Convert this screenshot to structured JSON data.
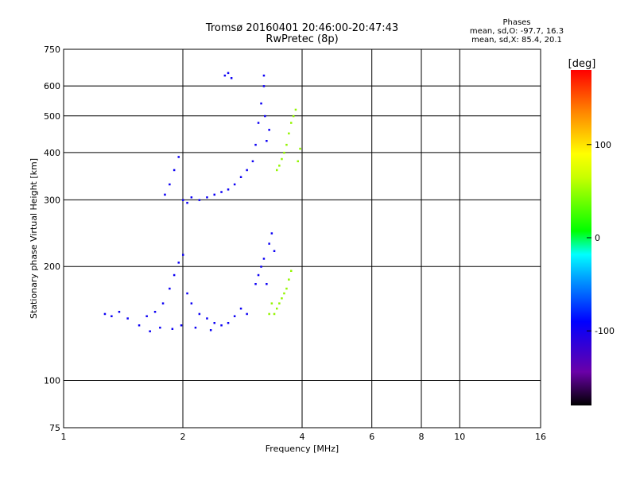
{
  "chart_data": {
    "type": "scatter",
    "title": "Tromsø 20160401 20:46:00-20:47:43",
    "subtitle": "RwPretec (8p)",
    "xlabel": "Frequency [MHz]",
    "ylabel": "Stationary phase Virtual Height [km]",
    "x_scale": "log",
    "y_scale": "log",
    "xlim": [
      1,
      16
    ],
    "ylim": [
      75,
      750
    ],
    "x_ticks": [
      "1",
      "2",
      "4",
      "6",
      "8",
      "10",
      "16"
    ],
    "x_tick_values": [
      1,
      2,
      4,
      6,
      8,
      10,
      16
    ],
    "y_ticks": [
      "75",
      "100",
      "200",
      "300",
      "400",
      "500",
      "600",
      "750"
    ],
    "y_tick_values": [
      75,
      100,
      200,
      300,
      400,
      500,
      600,
      750
    ],
    "grid": true,
    "legend": {
      "title": "Phases",
      "lines": [
        "mean, sd,O: -97.7, 16.3",
        "mean, sd,X: 85.4, 20.1"
      ]
    },
    "colorbar": {
      "unit": "[deg]",
      "range": [
        -180,
        180
      ],
      "ticks": [
        "100",
        "0",
        "-100"
      ],
      "tick_values": [
        100,
        0,
        -100
      ],
      "colormap": "rainbow"
    },
    "series": [
      {
        "mode": "O",
        "phase_mean": -97.7,
        "phase_sd": 16.3,
        "points": [
          [
            1.27,
            150
          ],
          [
            1.32,
            148
          ],
          [
            1.38,
            152
          ],
          [
            1.45,
            146
          ],
          [
            1.55,
            140
          ],
          [
            1.62,
            148
          ],
          [
            1.7,
            152
          ],
          [
            1.78,
            160
          ],
          [
            1.85,
            175
          ],
          [
            1.9,
            190
          ],
          [
            1.95,
            205
          ],
          [
            2.0,
            215
          ],
          [
            2.05,
            170
          ],
          [
            2.1,
            160
          ],
          [
            2.2,
            150
          ],
          [
            2.3,
            146
          ],
          [
            2.4,
            142
          ],
          [
            2.5,
            140
          ],
          [
            2.6,
            142
          ],
          [
            2.7,
            148
          ],
          [
            2.8,
            155
          ],
          [
            2.9,
            150
          ],
          [
            1.65,
            135
          ],
          [
            1.75,
            138
          ],
          [
            1.88,
            137
          ],
          [
            1.98,
            140
          ],
          [
            2.15,
            138
          ],
          [
            2.35,
            136
          ],
          [
            1.8,
            310
          ],
          [
            1.85,
            330
          ],
          [
            1.9,
            360
          ],
          [
            1.95,
            390
          ],
          [
            2.0,
            300
          ],
          [
            2.05,
            295
          ],
          [
            2.1,
            305
          ],
          [
            2.2,
            300
          ],
          [
            2.3,
            305
          ],
          [
            2.4,
            310
          ],
          [
            2.5,
            315
          ],
          [
            2.6,
            320
          ],
          [
            2.7,
            330
          ],
          [
            2.8,
            345
          ],
          [
            2.9,
            360
          ],
          [
            3.0,
            380
          ],
          [
            3.05,
            420
          ],
          [
            3.1,
            480
          ],
          [
            3.15,
            540
          ],
          [
            3.2,
            600
          ],
          [
            3.2,
            640
          ],
          [
            3.25,
            430
          ],
          [
            3.3,
            460
          ],
          [
            3.22,
            500
          ],
          [
            2.55,
            640
          ],
          [
            2.6,
            650
          ],
          [
            2.65,
            630
          ],
          [
            3.05,
            180
          ],
          [
            3.1,
            190
          ],
          [
            3.15,
            200
          ],
          [
            3.2,
            210
          ],
          [
            3.3,
            230
          ],
          [
            3.35,
            245
          ],
          [
            3.25,
            180
          ],
          [
            3.4,
            220
          ]
        ]
      },
      {
        "mode": "X",
        "phase_mean": 85.4,
        "phase_sd": 20.1,
        "points": [
          [
            3.4,
            150
          ],
          [
            3.45,
            155
          ],
          [
            3.5,
            160
          ],
          [
            3.55,
            165
          ],
          [
            3.6,
            170
          ],
          [
            3.65,
            175
          ],
          [
            3.3,
            150
          ],
          [
            3.35,
            160
          ],
          [
            3.7,
            185
          ],
          [
            3.75,
            195
          ],
          [
            3.5,
            370
          ],
          [
            3.55,
            385
          ],
          [
            3.6,
            400
          ],
          [
            3.65,
            420
          ],
          [
            3.7,
            450
          ],
          [
            3.75,
            480
          ],
          [
            3.8,
            500
          ],
          [
            3.85,
            520
          ],
          [
            3.45,
            360
          ],
          [
            3.9,
            380
          ],
          [
            3.95,
            410
          ]
        ]
      }
    ]
  }
}
